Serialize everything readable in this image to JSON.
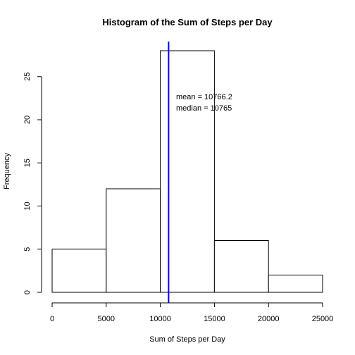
{
  "chart_data": {
    "type": "bar",
    "title": "Histogram of the Sum of Steps per Day",
    "xlabel": "Sum of Steps per Day",
    "ylabel": "Frequency",
    "bins": [
      {
        "from": 0,
        "to": 5000,
        "count": 5
      },
      {
        "from": 5000,
        "to": 10000,
        "count": 12
      },
      {
        "from": 10000,
        "to": 15000,
        "count": 28
      },
      {
        "from": 15000,
        "to": 20000,
        "count": 6
      },
      {
        "from": 20000,
        "to": 25000,
        "count": 2
      }
    ],
    "xlim": [
      0,
      25000
    ],
    "ylim": [
      0,
      28
    ],
    "xticks": [
      0,
      5000,
      10000,
      15000,
      20000,
      25000
    ],
    "yticks": [
      0,
      5,
      10,
      15,
      20,
      25
    ],
    "grid": false,
    "bar_fill": "#ffffff",
    "bar_stroke": "#000000",
    "mean_line": {
      "value": 10766.2,
      "color": "#0000ff"
    },
    "annotations": [
      "mean =  10766.2",
      "median =  10765"
    ]
  }
}
